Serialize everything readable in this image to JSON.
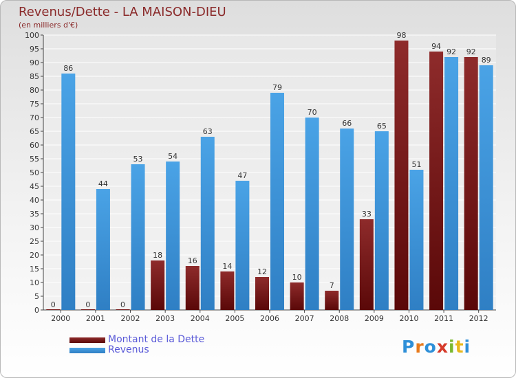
{
  "chart_data": {
    "type": "bar",
    "title": "Revenus/Dette - LA MAISON-DIEU",
    "subtitle": "(en milliers d'€)",
    "categories": [
      "2000",
      "2001",
      "2002",
      "2003",
      "2004",
      "2005",
      "2006",
      "2007",
      "2008",
      "2009",
      "2010",
      "2011",
      "2012"
    ],
    "series": [
      {
        "name": "Montant de la Dette",
        "values": [
          0,
          0,
          0,
          18,
          16,
          14,
          12,
          10,
          7,
          33,
          98,
          94,
          92
        ],
        "color": "#7a1e1e"
      },
      {
        "name": "Revenus",
        "values": [
          86,
          44,
          53,
          54,
          63,
          47,
          79,
          70,
          66,
          65,
          51,
          92,
          89
        ],
        "color": "#3d95dc"
      }
    ],
    "ylim": [
      0,
      100
    ],
    "yticks": [
      0,
      5,
      10,
      15,
      20,
      25,
      30,
      35,
      40,
      45,
      50,
      55,
      60,
      65,
      70,
      75,
      80,
      85,
      90,
      95,
      100
    ],
    "grid": true,
    "legend_position": "bottom-left"
  },
  "logo": {
    "text": "Proxiti",
    "letters": [
      "P",
      "r",
      "o",
      "x",
      "i",
      "t",
      "i"
    ],
    "colors": [
      "#2e8fd8",
      "#e87a1c",
      "#2e8fd8",
      "#d63a2a",
      "#7ab82e",
      "#e8b81c",
      "#2e8fd8"
    ]
  }
}
